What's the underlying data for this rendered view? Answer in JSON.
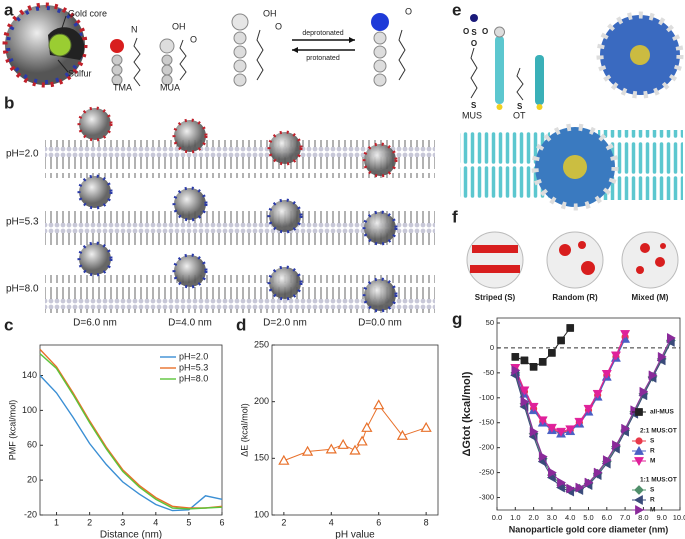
{
  "panel_labels": [
    "a",
    "b",
    "c",
    "d",
    "e",
    "f",
    "g"
  ],
  "panel_a": {
    "gold_core": "Gold core",
    "sulfur": "Sulfur",
    "tma": "TMA",
    "mua": "MUA",
    "n": "N",
    "oh_1": "OH",
    "o_1": "O",
    "oh_2": "OH",
    "o_2": "O",
    "o_3": "O",
    "deprotonated": "deprotonated",
    "protonated": "protonated"
  },
  "panel_b": {
    "rows": [
      "pH=2.0",
      "pH=5.3",
      "pH=8.0"
    ],
    "columns": [
      "D=6.0 nm",
      "D=4.0 nm",
      "D=2.0 nm",
      "D=0.0 nm"
    ]
  },
  "panel_e": {
    "mus": "MUS",
    "ot": "OT",
    "s_1": "S",
    "s_2": "S",
    "s_3": "S",
    "o_top": "O",
    "o_left": "O",
    "o_right": "O"
  },
  "panel_f": {
    "captions": [
      "Striped (S)",
      "Random (R)",
      "Mixed (M)"
    ]
  },
  "chart_data": [
    {
      "type": "line",
      "xlabel": "Distance (nm)",
      "ylabel": "PMF (kcal/mol)",
      "x": [
        0.5,
        1,
        1.5,
        2,
        2.5,
        3,
        3.5,
        4,
        4.5,
        5,
        5.5,
        6
      ],
      "series": [
        {
          "name": "pH=2.0",
          "color": "#3b8fd4",
          "values": [
            140,
            120,
            92,
            62,
            38,
            18,
            4,
            -8,
            -15,
            -14,
            2,
            -2
          ]
        },
        {
          "name": "pH=5.3",
          "color": "#e8702a",
          "values": [
            170,
            150,
            120,
            88,
            58,
            32,
            14,
            0,
            -10,
            -12,
            -12,
            -10
          ]
        },
        {
          "name": "pH=8.0",
          "color": "#5cc43a",
          "values": [
            165,
            148,
            118,
            86,
            56,
            30,
            12,
            -2,
            -12,
            -13,
            -12,
            -11
          ]
        }
      ],
      "xlim": [
        0.5,
        6
      ],
      "ylim": [
        -20,
        175
      ],
      "xticks": [
        1,
        2,
        3,
        4,
        5,
        6
      ],
      "yticks": [
        -20,
        20,
        60,
        100,
        140
      ],
      "legend": "upper right"
    },
    {
      "type": "line",
      "xlabel": "pH value",
      "ylabel": "ΔE (kcal/mol)",
      "x": [
        2,
        3,
        4,
        4.5,
        5,
        5.3,
        5.5,
        6,
        7,
        8
      ],
      "series": [
        {
          "color": "#e8702a",
          "marker": "triangle-open",
          "values": [
            148,
            156,
            158,
            162,
            157,
            165,
            177,
            197,
            170,
            177
          ]
        }
      ],
      "xlim": [
        1.5,
        8.5
      ],
      "ylim": [
        100,
        250
      ],
      "xticks": [
        2,
        4,
        6,
        8
      ],
      "yticks": [
        100,
        150,
        200,
        250
      ]
    },
    {
      "type": "line",
      "xlabel": "Nanoparticle gold core diameter (nm)",
      "ylabel": "ΔGtot (kcal/mol)",
      "series": [
        {
          "name": "all-MUS",
          "color": "#222222",
          "marker": "square",
          "x": [
            1,
            1.5,
            2,
            2.5,
            3,
            3.5,
            4
          ],
          "values": [
            -18,
            -25,
            -38,
            -28,
            -10,
            15,
            40
          ]
        },
        {
          "name": "S",
          "group": "2:1 MUS:OT",
          "color": "#e8394a",
          "marker": "circle",
          "x": [
            1,
            1.5,
            2,
            2.5,
            3,
            3.5,
            4,
            4.5,
            5,
            5.5,
            6,
            6.5,
            7
          ],
          "values": [
            -45,
            -88,
            -122,
            -148,
            -163,
            -170,
            -165,
            -150,
            -125,
            -95,
            -55,
            -18,
            22
          ]
        },
        {
          "name": "R",
          "group": "2:1 MUS:OT",
          "color": "#4a5fc4",
          "marker": "triangle",
          "x": [
            1,
            1.5,
            2,
            2.5,
            3,
            3.5,
            4,
            4.5,
            5,
            5.5,
            6,
            6.5,
            7
          ],
          "values": [
            -48,
            -92,
            -125,
            -150,
            -165,
            -172,
            -167,
            -152,
            -128,
            -98,
            -58,
            -20,
            18
          ]
        },
        {
          "name": "M",
          "group": "2:1 MUS:OT",
          "color": "#e0209a",
          "marker": "triangle-down",
          "x": [
            1,
            1.5,
            2,
            2.5,
            3,
            3.5,
            4,
            4.5,
            5,
            5.5,
            6,
            6.5,
            7
          ],
          "values": [
            -40,
            -85,
            -118,
            -145,
            -160,
            -168,
            -163,
            -148,
            -122,
            -92,
            -52,
            -15,
            28
          ]
        },
        {
          "name": "S",
          "group": "1:1 MUS:OT",
          "color": "#4f8f6a",
          "marker": "diamond",
          "x": [
            1,
            1.5,
            2,
            2.5,
            3,
            3.5,
            4,
            4.5,
            5,
            5.5,
            6,
            6.5,
            7,
            7.5,
            8,
            8.5,
            9,
            9.5
          ],
          "values": [
            -50,
            -112,
            -172,
            -222,
            -255,
            -275,
            -285,
            -282,
            -272,
            -252,
            -228,
            -198,
            -165,
            -128,
            -92,
            -58,
            -22,
            15
          ]
        },
        {
          "name": "R",
          "group": "1:1 MUS:OT",
          "color": "#3a4a7a",
          "marker": "triangle-left",
          "x": [
            1,
            1.5,
            2,
            2.5,
            3,
            3.5,
            4,
            4.5,
            5,
            5.5,
            6,
            6.5,
            7,
            7.5,
            8,
            8.5,
            9,
            9.5
          ],
          "values": [
            -55,
            -118,
            -178,
            -228,
            -260,
            -280,
            -288,
            -285,
            -275,
            -255,
            -232,
            -202,
            -168,
            -132,
            -95,
            -60,
            -25,
            12
          ]
        },
        {
          "name": "M",
          "group": "1:1 MUS:OT",
          "color": "#8a2a9a",
          "marker": "triangle-right",
          "x": [
            1,
            1.5,
            2,
            2.5,
            3,
            3.5,
            4,
            4.5,
            5,
            5.5,
            6,
            6.5,
            7,
            7.5,
            8,
            8.5,
            9,
            9.5
          ],
          "values": [
            -45,
            -108,
            -168,
            -218,
            -250,
            -270,
            -282,
            -280,
            -270,
            -250,
            -225,
            -195,
            -162,
            -125,
            -88,
            -55,
            -18,
            20
          ]
        }
      ],
      "xlim": [
        0,
        10
      ],
      "ylim": [
        -325,
        60
      ],
      "xticks": [
        {
          "value": 0,
          "label": "0.0"
        },
        {
          "value": 1,
          "label": "1.0"
        },
        {
          "value": 2,
          "label": "2.0"
        },
        {
          "value": 3,
          "label": "3.0"
        },
        {
          "value": 4,
          "label": "4.0"
        },
        {
          "value": 5,
          "label": "5.0"
        },
        {
          "value": 6,
          "label": "6.0"
        },
        {
          "value": 7,
          "label": "7.0"
        },
        {
          "value": 8,
          "label": "8.0"
        },
        {
          "value": 9,
          "label": "9.0"
        },
        {
          "value": 10,
          "label": "10.0"
        }
      ],
      "yticks": [
        -300,
        -250,
        -200,
        -150,
        -100,
        -50,
        0,
        50
      ],
      "reference_line": 0,
      "legend": "right"
    }
  ]
}
